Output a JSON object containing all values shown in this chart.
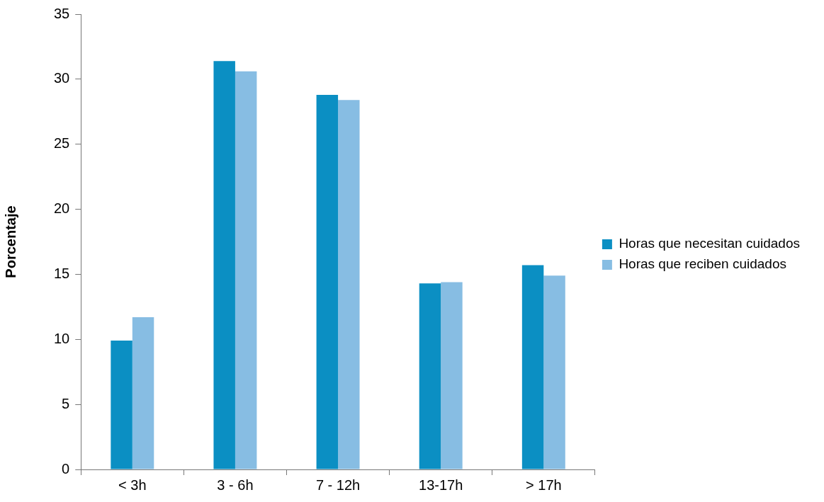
{
  "chart_data": {
    "type": "bar",
    "ylabel": "Porcentaje",
    "categories": [
      "< 3h",
      "3 - 6h",
      "7 - 12h",
      "13-17h",
      "> 17h"
    ],
    "series": [
      {
        "name": "Horas que necesitan cuidados",
        "color": "#0b8fc3",
        "values": [
          9.9,
          31.4,
          28.8,
          14.3,
          15.7
        ]
      },
      {
        "name": "Horas que reciben cuidados",
        "color": "#87bde3",
        "values": [
          11.7,
          30.6,
          28.4,
          14.4,
          14.9
        ]
      }
    ],
    "ylim": [
      0,
      35
    ],
    "yticks": [
      0,
      5,
      10,
      15,
      20,
      25,
      30,
      35
    ],
    "legend": "right"
  }
}
